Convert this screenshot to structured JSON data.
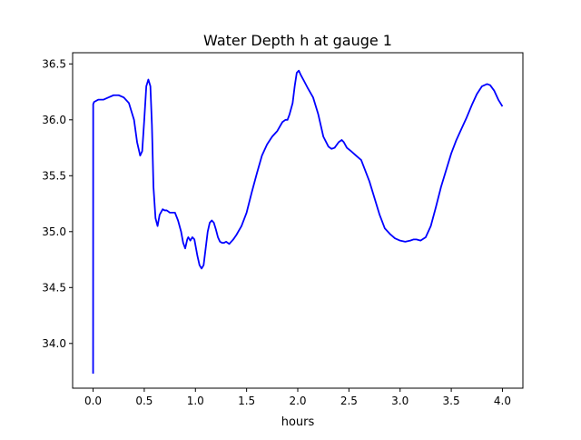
{
  "chart_data": {
    "type": "line",
    "title": "Water Depth h at gauge 1",
    "xlabel": "hours",
    "ylabel": "",
    "xlim": [
      -0.2,
      4.2
    ],
    "ylim": [
      33.6,
      36.6
    ],
    "xticks": [
      0.0,
      0.5,
      1.0,
      1.5,
      2.0,
      2.5,
      3.0,
      3.5,
      4.0
    ],
    "xtick_labels": [
      "0.0",
      "0.5",
      "1.0",
      "1.5",
      "2.0",
      "2.5",
      "3.0",
      "3.5",
      "4.0"
    ],
    "yticks": [
      34.0,
      34.5,
      35.0,
      35.5,
      36.0,
      36.5
    ],
    "ytick_labels": [
      "34.0",
      "34.5",
      "35.0",
      "35.5",
      "36.0",
      "36.5"
    ],
    "grid": false,
    "series": [
      {
        "color": "#0000ff",
        "x": [
          0.0,
          0.001,
          0.01,
          0.05,
          0.1,
          0.15,
          0.2,
          0.25,
          0.3,
          0.35,
          0.4,
          0.43,
          0.46,
          0.48,
          0.5,
          0.52,
          0.54,
          0.56,
          0.575,
          0.59,
          0.61,
          0.63,
          0.65,
          0.68,
          0.7,
          0.72,
          0.75,
          0.78,
          0.8,
          0.83,
          0.86,
          0.88,
          0.9,
          0.92,
          0.93,
          0.95,
          0.97,
          0.99,
          1.0,
          1.02,
          1.04,
          1.06,
          1.08,
          1.1,
          1.12,
          1.14,
          1.16,
          1.18,
          1.2,
          1.22,
          1.24,
          1.26,
          1.28,
          1.3,
          1.33,
          1.37,
          1.4,
          1.45,
          1.5,
          1.55,
          1.6,
          1.65,
          1.7,
          1.75,
          1.8,
          1.85,
          1.88,
          1.9,
          1.92,
          1.95,
          1.97,
          1.99,
          2.01,
          2.03,
          2.06,
          2.1,
          2.15,
          2.2,
          2.25,
          2.3,
          2.33,
          2.36,
          2.4,
          2.43,
          2.45,
          2.48,
          2.52,
          2.57,
          2.62,
          2.7,
          2.8,
          2.85,
          2.9,
          2.95,
          3.0,
          3.05,
          3.1,
          3.13,
          3.16,
          3.2,
          3.25,
          3.3,
          3.35,
          3.4,
          3.45,
          3.5,
          3.55,
          3.6,
          3.65,
          3.7,
          3.75,
          3.8,
          3.85,
          3.88,
          3.92,
          3.96,
          4.0
        ],
        "y": [
          33.73,
          36.14,
          36.16,
          36.18,
          36.18,
          36.2,
          36.22,
          36.22,
          36.2,
          36.15,
          36.0,
          35.8,
          35.68,
          35.72,
          36.0,
          36.3,
          36.36,
          36.3,
          35.95,
          35.4,
          35.12,
          35.05,
          35.15,
          35.2,
          35.19,
          35.19,
          35.17,
          35.17,
          35.17,
          35.1,
          35.0,
          34.9,
          34.85,
          34.93,
          34.95,
          34.92,
          34.95,
          34.93,
          34.88,
          34.78,
          34.7,
          34.67,
          34.7,
          34.85,
          35.0,
          35.08,
          35.1,
          35.08,
          35.02,
          34.95,
          34.91,
          34.9,
          34.9,
          34.91,
          34.89,
          34.93,
          34.97,
          35.05,
          35.17,
          35.35,
          35.52,
          35.68,
          35.78,
          35.85,
          35.9,
          35.98,
          36.0,
          36.0,
          36.05,
          36.15,
          36.3,
          36.42,
          36.44,
          36.4,
          36.35,
          36.28,
          36.2,
          36.05,
          35.85,
          35.76,
          35.74,
          35.75,
          35.8,
          35.82,
          35.8,
          35.75,
          35.72,
          35.68,
          35.64,
          35.45,
          35.15,
          35.03,
          34.98,
          34.94,
          34.92,
          34.91,
          34.92,
          34.93,
          34.93,
          34.92,
          34.95,
          35.05,
          35.22,
          35.4,
          35.55,
          35.7,
          35.82,
          35.92,
          36.02,
          36.13,
          36.23,
          36.3,
          36.32,
          36.31,
          36.26,
          36.18,
          36.12
        ]
      }
    ]
  }
}
